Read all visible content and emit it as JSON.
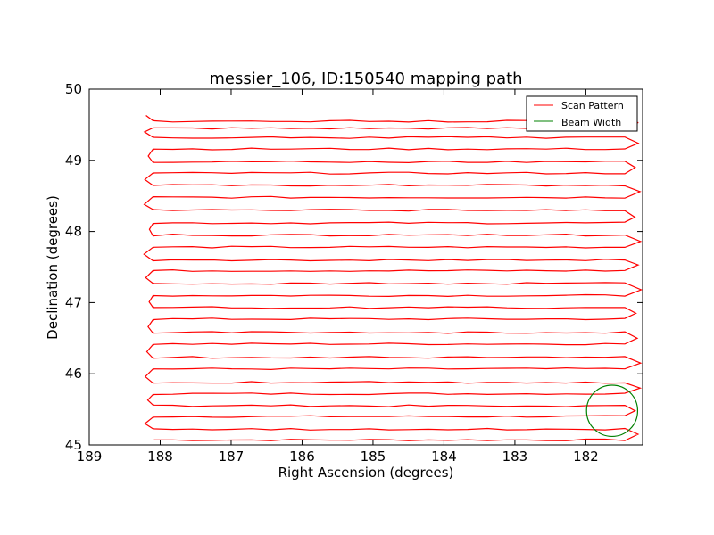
{
  "chart_data": {
    "type": "line",
    "title": "messier_106, ID:150540 mapping path",
    "xlabel": "Right Ascension (degrees)",
    "ylabel": "Declination (degrees)",
    "xlim": [
      189,
      181.2
    ],
    "ylim": [
      45,
      50
    ],
    "x_ticks": [
      189,
      188,
      187,
      186,
      185,
      184,
      183,
      182
    ],
    "y_ticks": [
      45,
      46,
      47,
      48,
      49,
      50
    ],
    "x_tick_labels": [
      "189",
      "188",
      "187",
      "186",
      "185",
      "184",
      "183",
      "182"
    ],
    "y_tick_labels": [
      "45",
      "46",
      "47",
      "48",
      "49",
      "50"
    ],
    "grid": false,
    "legend": {
      "position": "top-right",
      "entries": [
        {
          "label": "Scan Pattern",
          "color": "#ff0000"
        },
        {
          "label": "Beam Width",
          "color": "#008000"
        }
      ]
    },
    "series": [
      {
        "name": "Scan Pattern",
        "color": "#ff0000",
        "kind": "raster-scan",
        "row_dec": [
          45.07,
          45.22,
          45.4,
          45.55,
          45.72,
          45.88,
          46.07,
          46.23,
          46.42,
          46.58,
          46.77,
          46.93,
          47.1,
          47.27,
          47.45,
          47.6,
          47.78,
          47.95,
          48.12,
          48.3,
          48.48,
          48.65,
          48.82,
          48.98,
          49.16,
          49.32,
          49.45,
          49.55
        ],
        "ra_min": 188.1,
        "ra_max": 181.45
      },
      {
        "name": "Beam Width",
        "color": "#008000",
        "kind": "circle",
        "center": [
          181.63,
          45.48
        ],
        "radius_deg_ra": 0.36,
        "radius_deg_dec": 0.36
      }
    ]
  }
}
